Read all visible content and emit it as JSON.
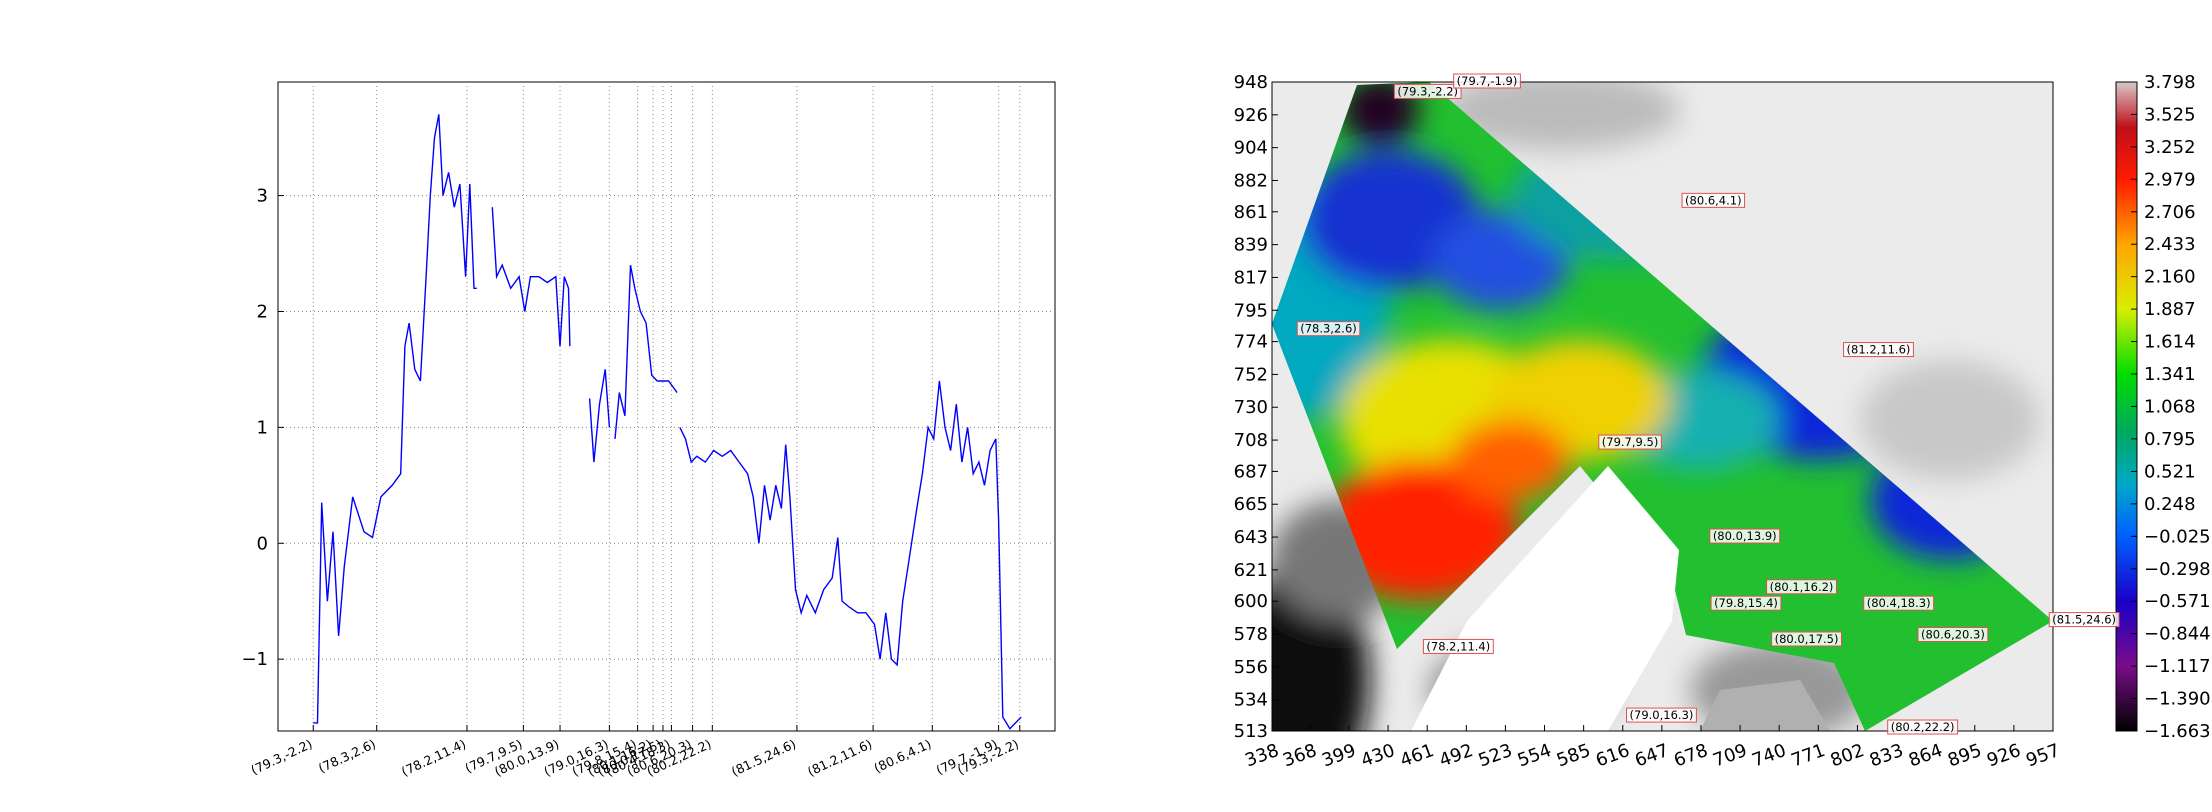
{
  "chart_data": [
    {
      "type": "line",
      "color": "#0000ff",
      "grid": true,
      "xlim": [
        0,
        110.2
      ],
      "ylim": [
        -1.62,
        3.98
      ],
      "yticks": [
        {
          "value": -1,
          "label": "−1"
        },
        0,
        1,
        2,
        3
      ],
      "xticks": [
        {
          "value": 5,
          "label": "(79.3,-2.2)"
        },
        {
          "value": 14,
          "label": "(78.3,2.6)"
        },
        {
          "value": 26.8,
          "label": "(78.2,11.4)"
        },
        {
          "value": 34.8,
          "label": "(79.7,9.5)"
        },
        {
          "value": 40,
          "label": "(80.0,13.9)"
        },
        {
          "value": 47,
          "label": "(79.0,16.3)"
        },
        {
          "value": 51,
          "label": "(79.8,15.4)"
        },
        {
          "value": 53.2,
          "label": "(80.1,16.2)"
        },
        {
          "value": 54.6,
          "label": "(80.0,17.5)"
        },
        {
          "value": 55.8,
          "label": "(80.4,18.3)"
        },
        {
          "value": 58.8,
          "label": "(80.6,20.3)"
        },
        {
          "value": 61.6,
          "label": "(80.2,22.2)"
        },
        {
          "value": 73.6,
          "label": "(81.5,24.6)"
        },
        {
          "value": 84.4,
          "label": "(81.2,11.6)"
        },
        {
          "value": 92.8,
          "label": "(80.6,4.1)"
        },
        {
          "value": 102.2,
          "label": "(79.7,-1.9)"
        },
        {
          "value": 105.2,
          "label": "(79.3,-2.2)"
        }
      ],
      "x": [
        5,
        5.6,
        6.2,
        7,
        7.8,
        8.6,
        9.4,
        10.6,
        12.2,
        13.4,
        14.6,
        16.2,
        17.4,
        18,
        18.6,
        19.4,
        20.2,
        21,
        21.6,
        22.2,
        22.8,
        23.4,
        24.2,
        25,
        25.8,
        26.6,
        27.2,
        27.8,
        28.2,
        29.2,
        30.4,
        31,
        31.8,
        33,
        34.2,
        35,
        35.8,
        37,
        38.2,
        39.4,
        40,
        40.6,
        41.2,
        41.4,
        42.8,
        44.2,
        44.8,
        45.6,
        46.4,
        47,
        47.4,
        47.8,
        48.4,
        49.2,
        50,
        50.6,
        51.4,
        52.2,
        53,
        53.8,
        54.6,
        55.4,
        56.6,
        56.8,
        57,
        57.8,
        58.6,
        59.4,
        60.6,
        61.8,
        63,
        64.2,
        65.4,
        66.6,
        67.4,
        68.2,
        69,
        69.8,
        70.6,
        71.4,
        72,
        72.6,
        73.4,
        74.2,
        75,
        76.2,
        77.4,
        78.6,
        79.4,
        80,
        81,
        82.2,
        83.4,
        84.6,
        85.4,
        86.2,
        87,
        87.8,
        88.6,
        89.6,
        90.6,
        91.4,
        92.2,
        93,
        93.8,
        94.6,
        95.4,
        96.2,
        97,
        97.8,
        98.6,
        99.4,
        100.2,
        101,
        101.8,
        102.2,
        102.8,
        103.8,
        104.6,
        105.4
      ],
      "values": [
        -1.55,
        -1.55,
        0.35,
        -0.5,
        0.1,
        -0.8,
        -0.2,
        0.4,
        0.1,
        0.05,
        0.4,
        0.5,
        0.6,
        1.7,
        1.9,
        1.5,
        1.4,
        2.3,
        3.0,
        3.5,
        3.7,
        3.0,
        3.2,
        2.9,
        3.1,
        2.3,
        3.1,
        2.2,
        2.2,
        null,
        2.9,
        2.3,
        2.4,
        2.2,
        2.3,
        2.0,
        2.3,
        2.3,
        2.25,
        2.3,
        1.7,
        2.3,
        2.2,
        1.7,
        null,
        1.25,
        0.7,
        1.2,
        1.5,
        1.0,
        null,
        0.9,
        1.3,
        1.1,
        2.4,
        2.2,
        2.0,
        1.9,
        1.45,
        1.4,
        1.4,
        1.4,
        1.3,
        null,
        1.0,
        0.9,
        0.7,
        0.75,
        0.7,
        0.8,
        0.75,
        0.8,
        0.7,
        0.6,
        0.4,
        0.0,
        0.5,
        0.2,
        0.5,
        0.3,
        0.85,
        0.4,
        -0.4,
        -0.6,
        -0.45,
        -0.6,
        -0.4,
        -0.3,
        0.05,
        -0.5,
        -0.55,
        -0.6,
        -0.6,
        -0.7,
        -1.0,
        -0.6,
        -1.0,
        -1.05,
        -0.5,
        -0.1,
        0.3,
        0.6,
        1.0,
        0.9,
        1.4,
        1.0,
        0.8,
        1.2,
        0.7,
        1.0,
        0.6,
        0.7,
        0.5,
        0.8,
        0.9,
        0.2,
        -1.5,
        -1.6,
        -1.55,
        -1.5
      ]
    },
    {
      "type": "map",
      "xlim": [
        338,
        957
      ],
      "ylim": [
        513,
        948
      ],
      "xticks": [
        338,
        368,
        399,
        430,
        461,
        492,
        523,
        554,
        585,
        616,
        647,
        678,
        709,
        740,
        771,
        802,
        833,
        864,
        895,
        926,
        957
      ],
      "yticks": [
        513,
        534,
        556,
        578,
        600,
        621,
        643,
        665,
        687,
        708,
        730,
        752,
        774,
        795,
        817,
        839,
        861,
        882,
        904,
        926,
        948
      ],
      "colorbar": {
        "lim": [
          -1.663,
          3.798
        ],
        "ticks": [
          {
            "value": -1.663,
            "label": "−1.663"
          },
          {
            "value": -1.39,
            "label": "−1.390"
          },
          {
            "value": -1.117,
            "label": "−1.117"
          },
          {
            "value": -0.844,
            "label": "−0.844"
          },
          {
            "value": -0.571,
            "label": "−0.571"
          },
          {
            "value": -0.298,
            "label": "−0.298"
          },
          {
            "value": -0.025,
            "label": "−0.025"
          },
          0.248,
          0.521,
          0.795,
          {
            "value": 1.068,
            "label": "1.068"
          },
          1.341,
          1.614,
          1.887,
          {
            "value": 2.16,
            "label": "2.160"
          },
          2.433,
          2.706,
          2.979,
          3.252,
          3.525,
          3.798
        ]
      },
      "annotations": [
        {
          "text": "(79.3,-2.2)",
          "x": 435,
          "y": 941
        },
        {
          "text": "(79.7,-1.9)",
          "x": 482,
          "y": 948
        },
        {
          "text": "(80.6,4.1)",
          "x": 663,
          "y": 868
        },
        {
          "text": "(78.3,2.6)",
          "x": 358,
          "y": 782
        },
        {
          "text": "(81.2,11.6)",
          "x": 791,
          "y": 768
        },
        {
          "text": "(79.7,9.5)",
          "x": 597,
          "y": 706
        },
        {
          "text": "(80.0,13.9)",
          "x": 685,
          "y": 643
        },
        {
          "text": "(80.1,16.2)",
          "x": 730,
          "y": 609
        },
        {
          "text": "(79.8,15.4)",
          "x": 686,
          "y": 598
        },
        {
          "text": "(80.4,18.3)",
          "x": 807,
          "y": 598
        },
        {
          "text": "(80.0,17.5)",
          "x": 734,
          "y": 574
        },
        {
          "text": "(80.6,20.3)",
          "x": 850,
          "y": 577
        },
        {
          "text": "(81.5,24.6)",
          "x": 954,
          "y": 587
        },
        {
          "text": "(78.2,11.4)",
          "x": 458,
          "y": 569
        },
        {
          "text": "(79.0,16.3)",
          "x": 619,
          "y": 523
        },
        {
          "text": "(80.2,22.2)",
          "x": 826,
          "y": 515
        }
      ]
    }
  ]
}
